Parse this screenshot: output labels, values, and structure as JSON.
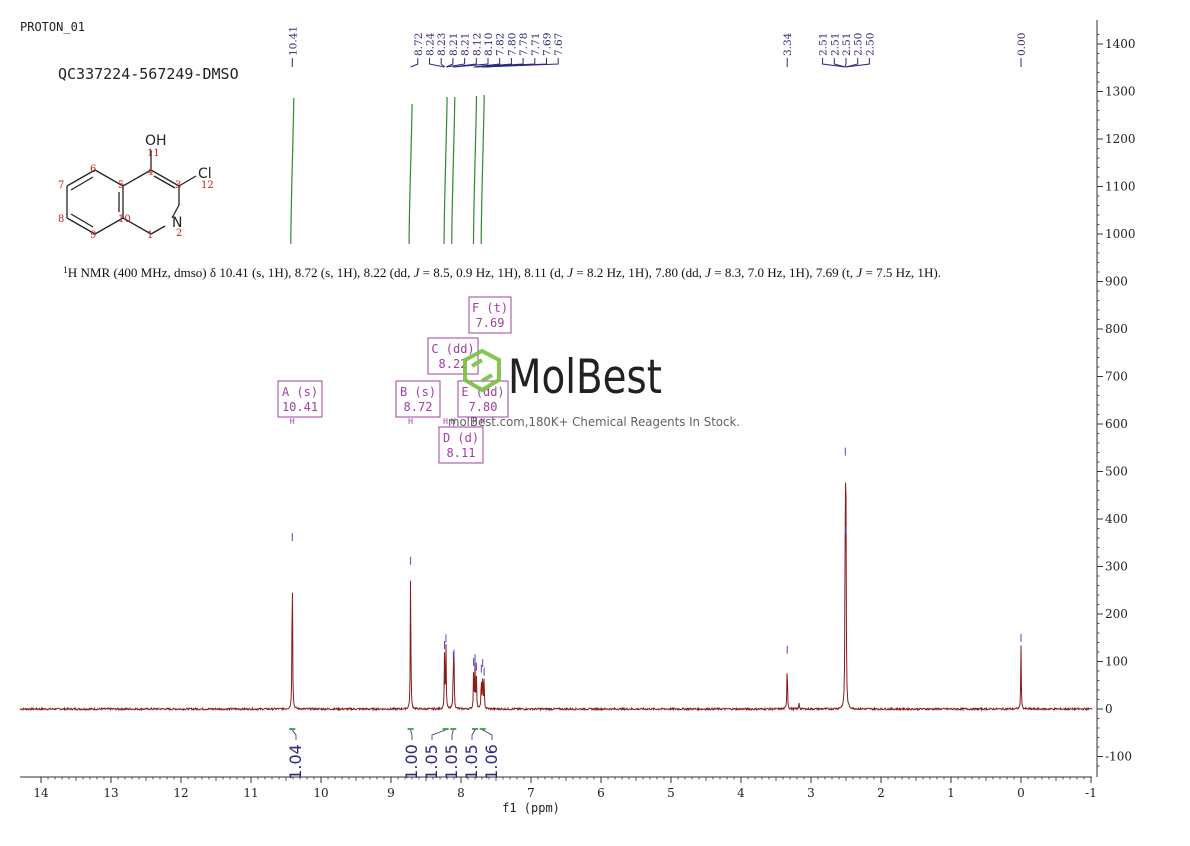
{
  "header": {
    "experiment": "PROTON_01",
    "sample": "QC337224-567249-DMSO"
  },
  "molecule": {
    "atoms": [
      {
        "id": "O",
        "label": "OH"
      },
      {
        "id": "Cl",
        "label": "Cl"
      },
      {
        "id": "N",
        "label": "N"
      }
    ],
    "numbers": [
      "1",
      "2",
      "3",
      "4",
      "5",
      "6",
      "7",
      "8",
      "9",
      "10",
      "11",
      "12"
    ]
  },
  "nmr_summary": {
    "nucleus_sup": "1",
    "text_before_j": "H NMR (400 MHz, dmso) δ 10.41 (s, 1H), 8.72 (s, 1H), 8.22 (dd, ",
    "segments": [
      {
        "j": "J",
        "text": " = 8.5, 0.9 Hz, 1H), 8.11 (d, "
      },
      {
        "j": "J",
        "text": " = 8.2 Hz, 1H), 7.80 (dd, "
      },
      {
        "j": "J",
        "text": " = 8.3, 7.0 Hz, 1H), 7.69 (t, "
      },
      {
        "j": "J",
        "text": " = 7.5 Hz, 1H)."
      }
    ]
  },
  "watermark": {
    "brand": "MolBest",
    "tagline": "molBest.com,180K+ Chemical Reagents In Stock."
  },
  "colors": {
    "spectrum": "#8b1a1a",
    "peak_labels": "#2a2a7a",
    "integral": "#2e8b2e",
    "multiplet_box": "#a040a0",
    "logo_green": "#7cc243",
    "axis": "#333333"
  },
  "chart_data": {
    "type": "line",
    "xlabel": "f1 (ppm)",
    "xlim": [
      14.3,
      -1
    ],
    "x_reversed": true,
    "x_ticks": [
      "14",
      "13",
      "12",
      "11",
      "10",
      "9",
      "8",
      "7",
      "6",
      "5",
      "4",
      "3",
      "2",
      "1",
      "0",
      "-1"
    ],
    "ylim": [
      -140,
      1440
    ],
    "y_ticks": [
      "1400",
      "1300",
      "1200",
      "1100",
      "1000",
      "900",
      "800",
      "700",
      "600",
      "500",
      "400",
      "300",
      "200",
      "100",
      "0",
      "-100"
    ],
    "peaks": [
      {
        "ppm": 10.41,
        "height": 345
      },
      {
        "ppm": 8.72,
        "height": 295
      },
      {
        "ppm": 8.235,
        "height": 118
      },
      {
        "ppm": 8.215,
        "height": 132
      },
      {
        "ppm": 8.11,
        "height": 95
      },
      {
        "ppm": 8.1,
        "height": 100
      },
      {
        "ppm": 7.82,
        "height": 82
      },
      {
        "ppm": 7.8,
        "height": 90
      },
      {
        "ppm": 7.78,
        "height": 72
      },
      {
        "ppm": 7.71,
        "height": 68
      },
      {
        "ppm": 7.69,
        "height": 80
      },
      {
        "ppm": 7.67,
        "height": 62
      },
      {
        "ppm": 3.34,
        "height": 108
      },
      {
        "ppm": 3.17,
        "height": 15
      },
      {
        "ppm": 2.51,
        "height": 525
      },
      {
        "ppm": 2.5,
        "height": 360
      },
      {
        "ppm": 0.0,
        "height": 133
      }
    ],
    "peak_labels": {
      "group1": [
        "10.41"
      ],
      "group2": [
        "8.72",
        "8.24",
        "8.23",
        "8.21",
        "8.21",
        "8.12",
        "8.10",
        "7.82",
        "7.80",
        "7.78",
        "7.71",
        "7.69",
        "7.67"
      ],
      "group3": [
        "3.34"
      ],
      "group4": [
        "2.51",
        "2.51",
        "2.51",
        "2.50",
        "2.50"
      ],
      "group5": [
        "0.00"
      ]
    },
    "integrals": [
      {
        "ppm": 10.41,
        "value": "1.04"
      },
      {
        "ppm": 8.72,
        "value": "1.00"
      },
      {
        "ppm": 8.22,
        "value": "1.05"
      },
      {
        "ppm": 8.11,
        "value": "1.05"
      },
      {
        "ppm": 7.8,
        "value": "1.05"
      },
      {
        "ppm": 7.69,
        "value": "1.06"
      }
    ],
    "multiplets": [
      {
        "label": "A (s)",
        "value": "10.41",
        "ppm": 10.41
      },
      {
        "label": "B (s)",
        "value": "8.72",
        "ppm": 8.72
      },
      {
        "label": "C (dd)",
        "value": "8.22",
        "ppm": 8.22
      },
      {
        "label": "D (d)",
        "value": "8.11",
        "ppm": 8.11
      },
      {
        "label": "E (dd)",
        "value": "7.80",
        "ppm": 7.8
      },
      {
        "label": "F (t)",
        "value": "7.69",
        "ppm": 7.69
      }
    ]
  }
}
